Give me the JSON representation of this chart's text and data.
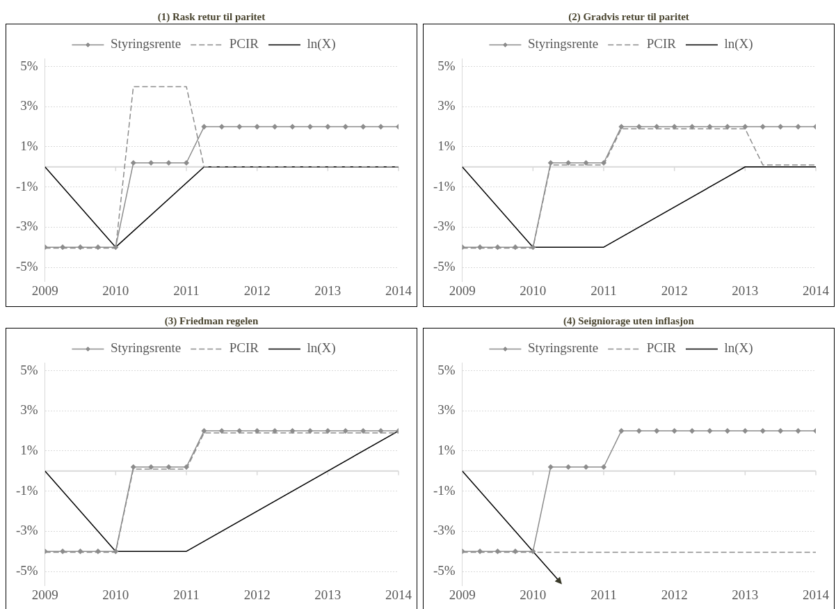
{
  "chart_data": [
    {
      "type": "line",
      "title": "(1) Rask retur til paritet",
      "x": [
        2009,
        2009.25,
        2009.5,
        2009.75,
        2010,
        2010.25,
        2010.5,
        2010.75,
        2011,
        2011.25,
        2011.5,
        2011.75,
        2012,
        2012.25,
        2012.5,
        2012.75,
        2013,
        2013.25,
        2013.5,
        2013.75,
        2014
      ],
      "series": [
        {
          "name": "Styringsrente",
          "color": "#8c8c8c",
          "marker": "diamond",
          "values": [
            -4,
            -4,
            -4,
            -4,
            -4,
            0.2,
            0.2,
            0.2,
            0.2,
            2,
            2,
            2,
            2,
            2,
            2,
            2,
            2,
            2,
            2,
            2,
            2
          ]
        },
        {
          "name": "PCIR",
          "color": "#8c8c8c",
          "line_style": "dashed",
          "marker": "none",
          "values": [
            -4.05,
            -4.05,
            -4.05,
            -4.05,
            -4.05,
            4,
            4,
            4,
            4,
            0,
            0,
            0,
            0,
            0,
            0,
            0,
            0,
            0,
            0,
            0,
            0
          ]
        },
        {
          "name": "ln(X)",
          "color": "#000000",
          "marker": "none",
          "x": [
            2009,
            2010,
            2011.25,
            2014
          ],
          "values": [
            0,
            -4,
            0,
            0
          ]
        }
      ],
      "xlim": [
        2009,
        2014
      ],
      "xticks": [
        2009,
        2010,
        2011,
        2012,
        2013,
        2014
      ],
      "ylim": [
        -5.7,
        5.4
      ],
      "yticks": [
        {
          "value": -5,
          "label": "-5%"
        },
        {
          "value": -3,
          "label": "-3%"
        },
        {
          "value": -1,
          "label": "-1%"
        },
        {
          "value": 1,
          "label": "1%"
        },
        {
          "value": 3,
          "label": "3%"
        },
        {
          "value": 5,
          "label": "5%"
        }
      ],
      "ref_lines": [
        {
          "axis": "y",
          "value": 0,
          "color": "#d9d9d9"
        }
      ],
      "grid": "y",
      "legend": "top"
    },
    {
      "type": "line",
      "title": "(2) Gradvis retur til paritet",
      "x": [
        2009,
        2009.25,
        2009.5,
        2009.75,
        2010,
        2010.25,
        2010.5,
        2010.75,
        2011,
        2011.25,
        2011.5,
        2011.75,
        2012,
        2012.25,
        2012.5,
        2012.75,
        2013,
        2013.25,
        2013.5,
        2013.75,
        2014
      ],
      "series": [
        {
          "name": "Styringsrente",
          "color": "#8c8c8c",
          "marker": "diamond",
          "values": [
            -4,
            -4,
            -4,
            -4,
            -4,
            0.2,
            0.2,
            0.2,
            0.2,
            2,
            2,
            2,
            2,
            2,
            2,
            2,
            2,
            2,
            2,
            2,
            2
          ]
        },
        {
          "name": "PCIR",
          "color": "#8c8c8c",
          "line_style": "dashed",
          "marker": "none",
          "values": [
            -4.05,
            -4.05,
            -4.05,
            -4.05,
            -4.05,
            0.1,
            0.1,
            0.1,
            0.1,
            1.9,
            1.9,
            1.9,
            1.9,
            1.9,
            1.9,
            1.9,
            1.9,
            0.1,
            0.1,
            0.1,
            0.1
          ]
        },
        {
          "name": "ln(X)",
          "color": "#000000",
          "marker": "none",
          "x": [
            2009,
            2010,
            2011,
            2013,
            2014
          ],
          "values": [
            0,
            -4,
            -4,
            0,
            0
          ]
        }
      ],
      "xlim": [
        2009,
        2014
      ],
      "xticks": [
        2009,
        2010,
        2011,
        2012,
        2013,
        2014
      ],
      "ylim": [
        -5.7,
        5.4
      ],
      "yticks": [
        {
          "value": -5,
          "label": "-5%"
        },
        {
          "value": -3,
          "label": "-3%"
        },
        {
          "value": -1,
          "label": "-1%"
        },
        {
          "value": 1,
          "label": "1%"
        },
        {
          "value": 3,
          "label": "3%"
        },
        {
          "value": 5,
          "label": "5%"
        }
      ],
      "ref_lines": [
        {
          "axis": "y",
          "value": 0,
          "color": "#d9d9d9"
        }
      ],
      "grid": "y",
      "legend": "top"
    },
    {
      "type": "line",
      "title": "(3) Friedman regelen",
      "x": [
        2009,
        2009.25,
        2009.5,
        2009.75,
        2010,
        2010.25,
        2010.5,
        2010.75,
        2011,
        2011.25,
        2011.5,
        2011.75,
        2012,
        2012.25,
        2012.5,
        2012.75,
        2013,
        2013.25,
        2013.5,
        2013.75,
        2014
      ],
      "series": [
        {
          "name": "Styringsrente",
          "color": "#8c8c8c",
          "marker": "diamond",
          "values": [
            -4,
            -4,
            -4,
            -4,
            -4,
            0.2,
            0.2,
            0.2,
            0.2,
            2,
            2,
            2,
            2,
            2,
            2,
            2,
            2,
            2,
            2,
            2,
            2
          ]
        },
        {
          "name": "PCIR",
          "color": "#8c8c8c",
          "line_style": "dashed",
          "marker": "none",
          "values": [
            -4.05,
            -4.05,
            -4.05,
            -4.05,
            -4.05,
            0.1,
            0.1,
            0.1,
            0.1,
            1.9,
            1.9,
            1.9,
            1.9,
            1.9,
            1.9,
            1.9,
            1.9,
            1.9,
            1.9,
            1.9,
            1.9
          ]
        },
        {
          "name": "ln(X)",
          "color": "#000000",
          "marker": "none",
          "x": [
            2009,
            2010,
            2011,
            2014
          ],
          "values": [
            0,
            -4,
            -4,
            2
          ]
        }
      ],
      "xlim": [
        2009,
        2014
      ],
      "xticks": [
        2009,
        2010,
        2011,
        2012,
        2013,
        2014
      ],
      "ylim": [
        -5.7,
        5.4
      ],
      "yticks": [
        {
          "value": -5,
          "label": "-5%"
        },
        {
          "value": -3,
          "label": "-3%"
        },
        {
          "value": -1,
          "label": "-1%"
        },
        {
          "value": 1,
          "label": "1%"
        },
        {
          "value": 3,
          "label": "3%"
        },
        {
          "value": 5,
          "label": "5%"
        }
      ],
      "ref_lines": [
        {
          "axis": "y",
          "value": 0,
          "color": "#d9d9d9"
        }
      ],
      "grid": "y",
      "legend": "top"
    },
    {
      "type": "line",
      "title": "(4) Seigniorage uten inflasjon",
      "x": [
        2009,
        2009.25,
        2009.5,
        2009.75,
        2010,
        2010.25,
        2010.5,
        2010.75,
        2011,
        2011.25,
        2011.5,
        2011.75,
        2012,
        2012.25,
        2012.5,
        2012.75,
        2013,
        2013.25,
        2013.5,
        2013.75,
        2014
      ],
      "series": [
        {
          "name": "Styringsrente",
          "color": "#8c8c8c",
          "marker": "diamond",
          "values": [
            -4,
            -4,
            -4,
            -4,
            -4,
            0.2,
            0.2,
            0.2,
            0.2,
            2,
            2,
            2,
            2,
            2,
            2,
            2,
            2,
            2,
            2,
            2,
            2
          ]
        },
        {
          "name": "PCIR",
          "color": "#8c8c8c",
          "line_style": "dashed",
          "marker": "none",
          "values": [
            -4.05,
            -4.05,
            -4.05,
            -4.05,
            -4.05,
            -4.05,
            -4.05,
            -4.05,
            -4.05,
            -4.05,
            -4.05,
            -4.05,
            -4.05,
            -4.05,
            -4.05,
            -4.05,
            -4.05,
            -4.05,
            -4.05,
            -4.05,
            -4.05
          ]
        },
        {
          "name": "ln(X)",
          "color": "#000000",
          "marker": "none",
          "x": [
            2009,
            2010,
            2010.37
          ],
          "values": [
            0,
            -4,
            -5.48
          ]
        }
      ],
      "xlim": [
        2009,
        2014
      ],
      "xticks": [
        2009,
        2010,
        2011,
        2012,
        2013,
        2014
      ],
      "ylim": [
        -5.7,
        5.4
      ],
      "yticks": [
        {
          "value": -5,
          "label": "-5%"
        },
        {
          "value": -3,
          "label": "-3%"
        },
        {
          "value": -1,
          "label": "-1%"
        },
        {
          "value": 1,
          "label": "1%"
        },
        {
          "value": 3,
          "label": "3%"
        },
        {
          "value": 5,
          "label": "5%"
        }
      ],
      "ref_lines": [
        {
          "axis": "y",
          "value": 0,
          "color": "#d9d9d9"
        }
      ],
      "grid": "y",
      "legend": "top"
    }
  ]
}
